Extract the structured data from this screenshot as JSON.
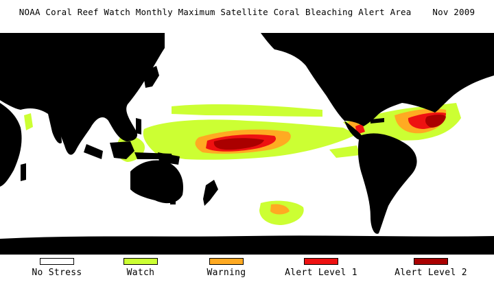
{
  "title": "NOAA Coral Reef Watch Monthly Maximum Satellite Coral Bleaching Alert Area    Nov 2009",
  "colors": {
    "land": "#000000",
    "no_stress": "#ffffff",
    "watch": "#ccff33",
    "warning": "#ffaa22",
    "alert1": "#ee1111",
    "alert2": "#aa0000"
  },
  "legend": [
    {
      "label": "No Stress",
      "color": "#ffffff"
    },
    {
      "label": "Watch",
      "color": "#ccff33"
    },
    {
      "label": "Warning",
      "color": "#ffaa22"
    },
    {
      "label": "Alert Level 1",
      "color": "#ee1111"
    },
    {
      "label": "Alert Level 2",
      "color": "#aa0000"
    }
  ]
}
